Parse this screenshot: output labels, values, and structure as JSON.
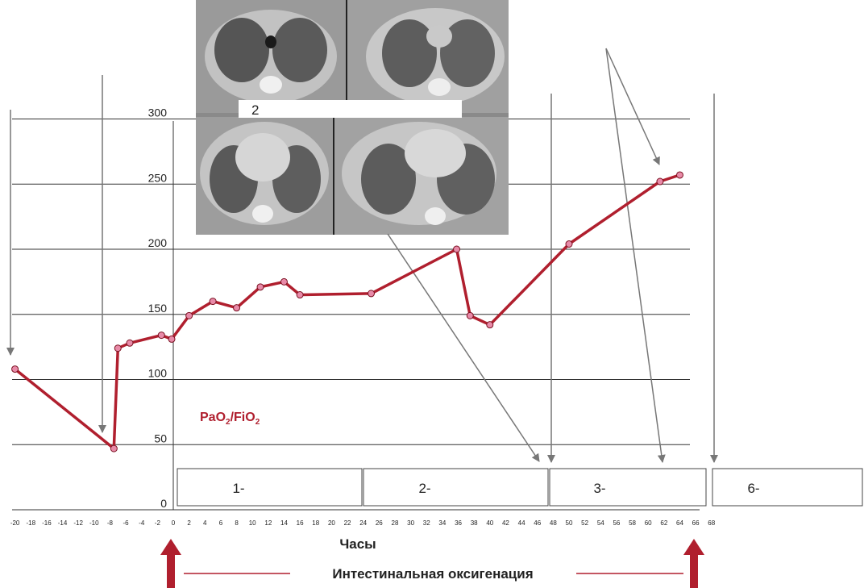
{
  "chart_data": {
    "type": "line",
    "series_label": {
      "prefix": "PaO",
      "sub1": "2",
      "mid": "/FiO",
      "sub2": "2"
    },
    "xlabel": "Часы",
    "xticks": [
      -20,
      -18,
      -16,
      -14,
      -12,
      -10,
      -8,
      -6,
      -4,
      -2,
      0,
      2,
      4,
      6,
      8,
      10,
      12,
      14,
      16,
      18,
      20,
      22,
      24,
      26,
      28,
      30,
      32,
      34,
      36,
      38,
      40,
      42,
      44,
      46,
      48,
      50,
      52,
      54,
      56,
      58,
      60,
      62,
      64,
      66,
      68
    ],
    "yticks": [
      0,
      50,
      100,
      150,
      200,
      250,
      300
    ],
    "xlim": [
      -20,
      68
    ],
    "ylim": [
      0,
      300
    ],
    "grid": "horizontal",
    "color": "#b01f2e",
    "marker_color": "#e88aa8",
    "points": [
      {
        "x": -20,
        "y": 108
      },
      {
        "x": -7.5,
        "y": 47
      },
      {
        "x": -7,
        "y": 124
      },
      {
        "x": -5.5,
        "y": 128
      },
      {
        "x": -1.5,
        "y": 134
      },
      {
        "x": -0.2,
        "y": 131
      },
      {
        "x": 2,
        "y": 149
      },
      {
        "x": 5,
        "y": 160
      },
      {
        "x": 8,
        "y": 155
      },
      {
        "x": 11,
        "y": 171
      },
      {
        "x": 14,
        "y": 175
      },
      {
        "x": 16,
        "y": 165
      },
      {
        "x": 25,
        "y": 166
      },
      {
        "x": 35.8,
        "y": 200
      },
      {
        "x": 37.5,
        "y": 149
      },
      {
        "x": 40,
        "y": 142
      },
      {
        "x": 50,
        "y": 204
      },
      {
        "x": 61.5,
        "y": 252
      },
      {
        "x": 64,
        "y": 257
      }
    ],
    "phases": [
      "1-",
      "2-",
      "3-",
      "6-"
    ],
    "ct_label": "2",
    "banner": "Интестинальная оксигенация"
  }
}
